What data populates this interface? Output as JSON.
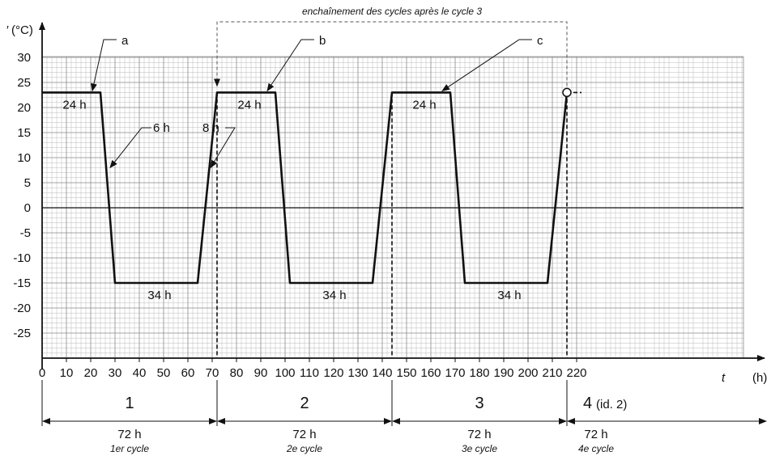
{
  "chart_data": {
    "type": "line",
    "ylabel_mark": "′",
    "yunit": "(°C)",
    "xlabel": "t",
    "xunit": "(h)",
    "xlim": [
      0,
      222
    ],
    "ylim": [
      -30,
      30
    ],
    "xticks": [
      0,
      10,
      20,
      30,
      40,
      50,
      60,
      70,
      80,
      90,
      100,
      110,
      120,
      130,
      140,
      150,
      160,
      170,
      180,
      190,
      200,
      210,
      220
    ],
    "yticks": [
      30,
      25,
      20,
      15,
      10,
      5,
      0,
      -5,
      -10,
      -15,
      -20,
      -25
    ],
    "grid": true,
    "series": [
      {
        "points": [
          [
            0,
            23
          ],
          [
            24,
            23
          ],
          [
            30,
            -15
          ],
          [
            64,
            -15
          ],
          [
            72,
            23
          ],
          [
            96,
            23
          ],
          [
            102,
            -15
          ],
          [
            136,
            -15
          ],
          [
            144,
            23
          ],
          [
            168,
            23
          ],
          [
            174,
            -15
          ],
          [
            208,
            -15
          ],
          [
            216,
            23
          ]
        ]
      }
    ],
    "continuation": {
      "points": [
        [
          216,
          23
        ],
        [
          222,
          23
        ]
      ],
      "style": "dashed"
    },
    "marker": {
      "x": 216,
      "y": 23,
      "shape": "open-circle"
    },
    "dashed_verticals": [
      72,
      144,
      216
    ],
    "bracket": {
      "x_from": 216,
      "x_to": 72,
      "label": "enchaînement des cycles après le cycle 3"
    },
    "annotations": [
      {
        "text": "a",
        "x": 20,
        "y": 23
      },
      {
        "text": "b",
        "x": 92,
        "y": 23
      },
      {
        "text": "c",
        "x": 164,
        "y": 23
      },
      {
        "text": "6 h",
        "x": 27,
        "y": 8
      },
      {
        "text": "8 h",
        "x": 69,
        "y": 8
      },
      {
        "text": "24 h",
        "x": 12,
        "y": 23
      },
      {
        "text": "24 h",
        "x": 84,
        "y": 23
      },
      {
        "text": "24 h",
        "x": 156,
        "y": 23
      },
      {
        "text": "34 h",
        "x": 47,
        "y": -15
      },
      {
        "text": "34 h",
        "x": 119,
        "y": -15
      },
      {
        "text": "34 h",
        "x": 191,
        "y": -15
      }
    ],
    "cycles": [
      {
        "number": "1",
        "duration": "72 h",
        "caption": "1er cycle",
        "x_from": 0,
        "x_to": 72
      },
      {
        "number": "2",
        "duration": "72 h",
        "caption": "2e cycle",
        "x_from": 72,
        "x_to": 144
      },
      {
        "number": "3",
        "duration": "72 h",
        "caption": "3e cycle",
        "x_from": 144,
        "x_to": 216
      },
      {
        "number": "4",
        "number_suffix": "(id. 2)",
        "duration": "72 h",
        "caption": "4e cycle",
        "x_from": 216,
        "x_to": 252
      }
    ]
  }
}
